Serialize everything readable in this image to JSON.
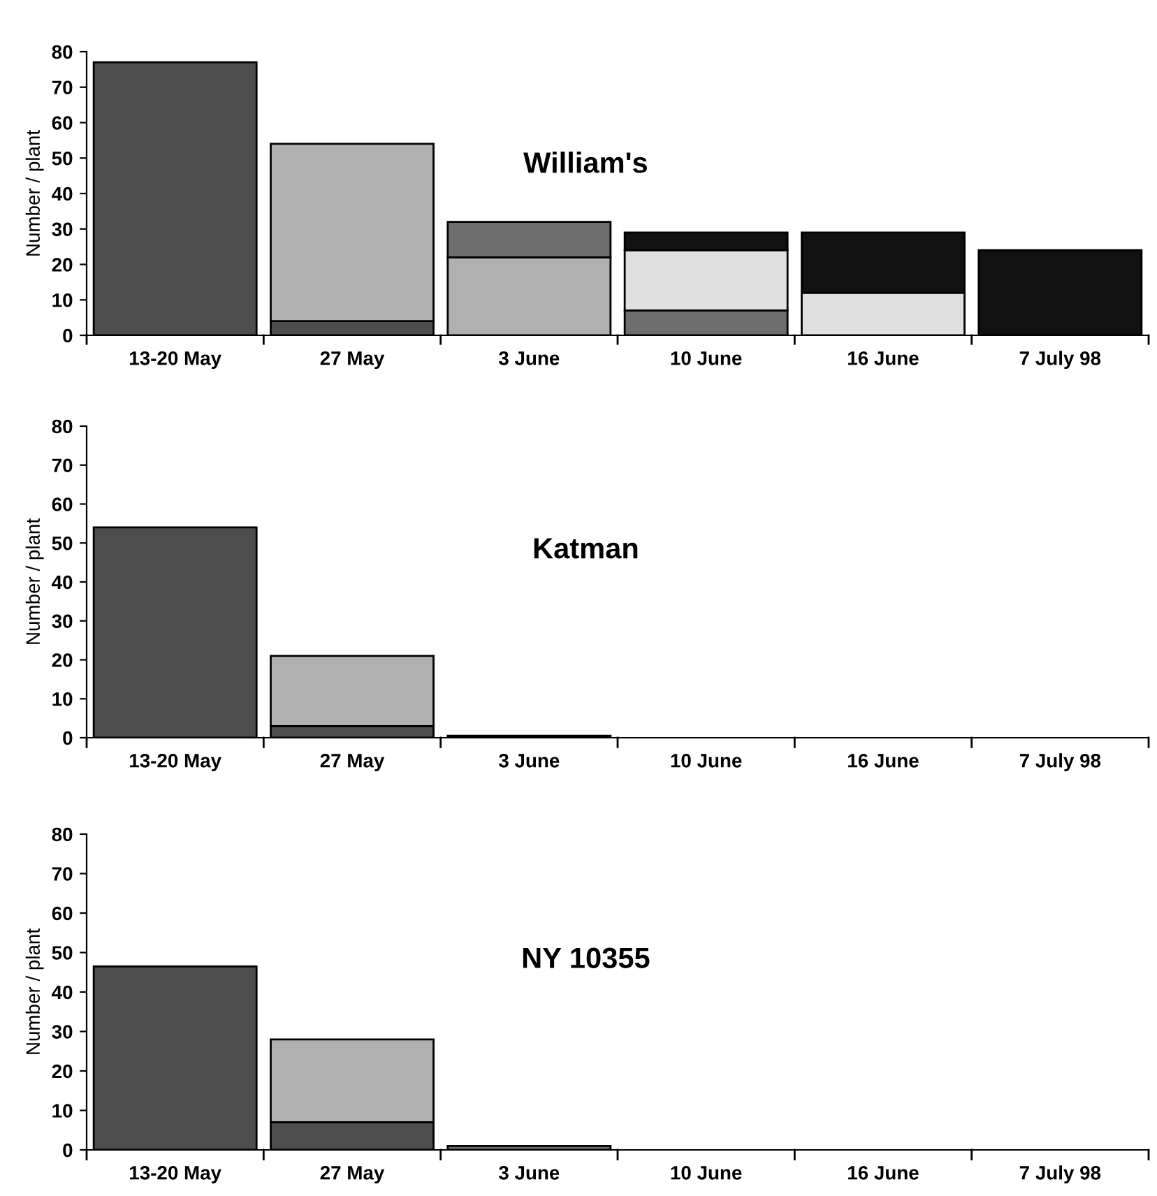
{
  "chart_data": [
    {
      "type": "bar",
      "stacked": true,
      "categories": [
        "13-20 May",
        "27 May",
        "3 June",
        "10 June",
        "16 June",
        "7 July 98"
      ],
      "ylabel": "Number / plant",
      "ylim": [
        0,
        80
      ],
      "yticks": [
        0,
        10,
        20,
        30,
        40,
        50,
        60,
        70,
        80
      ],
      "annotations": [
        "William's"
      ],
      "series": [
        {
          "color": "#4d4d4d",
          "values": [
            77,
            4,
            null,
            null,
            null,
            null
          ]
        },
        {
          "color": "#b0b0b0",
          "values": [
            null,
            50,
            22,
            null,
            null,
            null
          ]
        },
        {
          "color": "#6e6e6e",
          "values": [
            null,
            null,
            10,
            7,
            null,
            null
          ]
        },
        {
          "color": "#e0e0e0",
          "values": [
            null,
            null,
            null,
            17,
            12,
            null
          ]
        },
        {
          "color": "#111111",
          "values": [
            null,
            null,
            null,
            5,
            17,
            24
          ]
        }
      ]
    },
    {
      "type": "bar",
      "stacked": true,
      "categories": [
        "13-20 May",
        "27 May",
        "3 June",
        "10 June",
        "16 June",
        "7 July 98"
      ],
      "ylabel": "Number / plant",
      "ylim": [
        0,
        80
      ],
      "yticks": [
        0,
        10,
        20,
        30,
        40,
        50,
        60,
        70,
        80
      ],
      "annotations": [
        "Katman"
      ],
      "series": [
        {
          "color": "#4d4d4d",
          "values": [
            54,
            3,
            null,
            null,
            null,
            null
          ]
        },
        {
          "color": "#b0b0b0",
          "values": [
            null,
            18,
            0.5,
            null,
            null,
            null
          ]
        }
      ]
    },
    {
      "type": "bar",
      "stacked": true,
      "categories": [
        "13-20 May",
        "27 May",
        "3 June",
        "10 June",
        "16 June",
        "7 July 98"
      ],
      "ylabel": "Number / plant",
      "ylim": [
        0,
        80
      ],
      "yticks": [
        0,
        10,
        20,
        30,
        40,
        50,
        60,
        70,
        80
      ],
      "annotations": [
        "NY 10355"
      ],
      "series": [
        {
          "color": "#4d4d4d",
          "values": [
            46.5,
            7,
            null,
            null,
            null,
            null
          ]
        },
        {
          "color": "#b0b0b0",
          "values": [
            null,
            21,
            null,
            null,
            null,
            null
          ]
        },
        {
          "color": "#6e6e6e",
          "values": [
            null,
            null,
            1,
            null,
            null,
            null
          ]
        }
      ]
    }
  ]
}
